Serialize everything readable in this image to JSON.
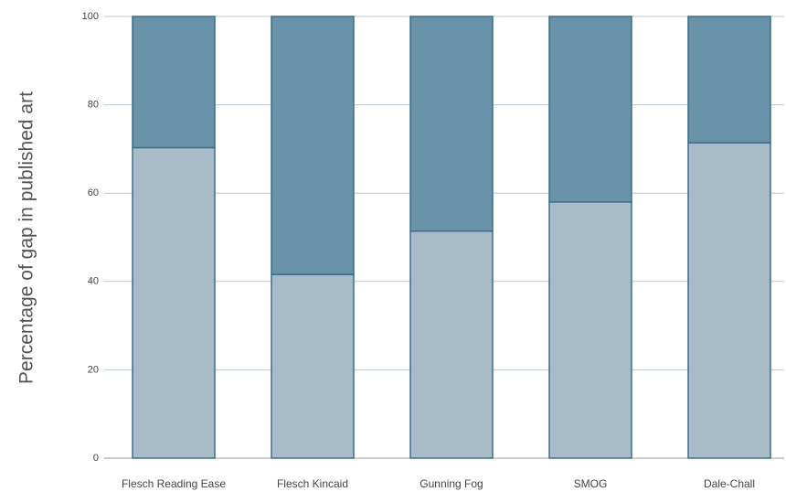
{
  "chart_data": {
    "type": "stacked_bar",
    "y_label": "Percentage of gap in published art",
    "categories": [
      "Flesch Reading Ease",
      "Flesch Kincaid",
      "Gunning Fog",
      "SMOG",
      "Dale-Chall"
    ],
    "series": [
      {
        "color": "#a7bcc8",
        "values": [
          70.3,
          41.6,
          51.4,
          58.0,
          71.4
        ]
      },
      {
        "color": "#6893a9",
        "values": [
          29.7,
          58.4,
          48.6,
          42.0,
          28.6
        ]
      }
    ],
    "edge_color": "#3e6e88",
    "ylim": [
      0,
      100
    ],
    "yticks": [
      0,
      20,
      40,
      60,
      80,
      100
    ],
    "grid": true
  }
}
